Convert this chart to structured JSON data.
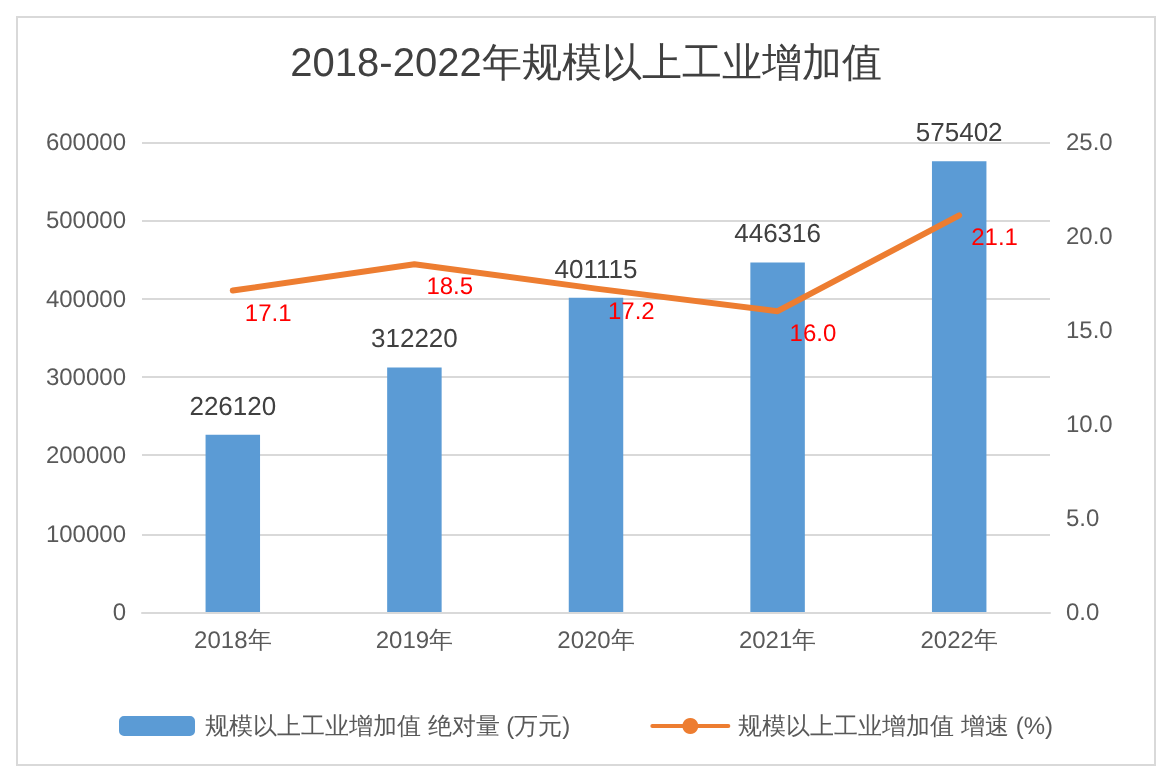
{
  "chart_data": {
    "type": "bar",
    "title": "2018-2022年规模以上工业增加值",
    "categories": [
      "2018年",
      "2019年",
      "2020年",
      "2021年",
      "2022年"
    ],
    "series": [
      {
        "name": "规模以上工业增加值 绝对量 (万元)",
        "color": "#5b9bd5",
        "values": [
          226120,
          312220,
          401115,
          446316,
          575402
        ],
        "value_labels": [
          "226120",
          "312220",
          "401115",
          "446316",
          "575402"
        ]
      },
      {
        "name": "规模以上工业增加值 增速 (%)",
        "type": "line",
        "axis": "y2",
        "color": "#ed7d31",
        "values": [
          17.1,
          18.5,
          17.2,
          16.0,
          21.1
        ],
        "value_labels": [
          "17.1",
          "18.5",
          "17.2",
          "16.0",
          "21.1"
        ]
      }
    ],
    "ylim": [
      0,
      600000
    ],
    "yticks": [
      0,
      100000,
      200000,
      300000,
      400000,
      500000,
      600000
    ],
    "y2lim": [
      0,
      25
    ],
    "y2ticks": [
      {
        "value": 0,
        "label": "0.0"
      },
      {
        "value": 5,
        "label": "5.0"
      },
      {
        "value": 10,
        "label": "10.0"
      },
      {
        "value": 15,
        "label": "15.0"
      },
      {
        "value": 20,
        "label": "20.0"
      },
      {
        "value": 25,
        "label": "25.0"
      }
    ],
    "grid": "y",
    "legend": "bottom",
    "marker": "none",
    "line_style": "solid"
  }
}
